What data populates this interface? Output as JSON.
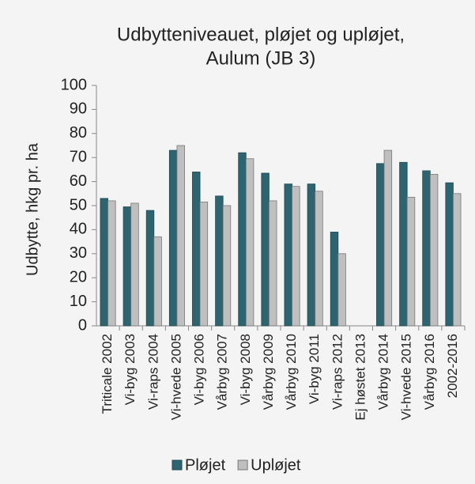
{
  "chart_data": {
    "type": "bar",
    "title": [
      "Udbytteniveauet, pløjet og upløjet,",
      "Aulum (JB 3)"
    ],
    "y_label": "Udbytte,  hkg pr. ha",
    "categories": [
      "Triticale 2002",
      "Vi-byg 2003",
      "Vi-raps 2004",
      "Vi-hvede 2005",
      "Vi-byg 2006",
      "Vårbyg 2007",
      "Vi-byg 2008",
      "Vårbyg 2009",
      "Vårbyg 2010",
      "Vi-byg 2011",
      "Vi-raps 2012",
      "Ej høstet 2013",
      "Vårbyg 2014",
      "Vi-hvede 2015",
      "Vårbyg 2016",
      "2002-2016"
    ],
    "series": [
      {
        "name": "Pløjet",
        "color": "#2e6470",
        "values": [
          53,
          49.5,
          48,
          73,
          64,
          54,
          72,
          63.5,
          59,
          59,
          39,
          null,
          67.5,
          68,
          64.5,
          59.5
        ]
      },
      {
        "name": "Upløjet",
        "color": "#bfbfbf",
        "values": [
          52,
          51,
          37,
          75,
          51.5,
          50,
          69.5,
          52,
          58,
          56,
          30,
          null,
          73,
          53.5,
          63,
          55
        ]
      }
    ],
    "ylim": [
      0,
      100
    ],
    "yticks": [
      0,
      10,
      20,
      30,
      40,
      50,
      60,
      70,
      80,
      90,
      100
    ],
    "grid": false,
    "legend": "bottom"
  }
}
